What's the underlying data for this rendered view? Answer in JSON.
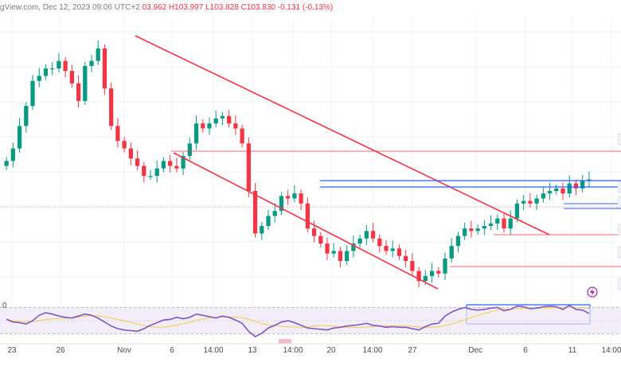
{
  "header": {
    "source": "gView.com, Dec 12, 2023 09:06 UTC+2",
    "open": "03.962",
    "high": "H103.997",
    "low": "L103.828",
    "close": "C103.830",
    "change": "-0.131 (-0.13%)"
  },
  "rsi_label": "0",
  "colors": {
    "up": "#089981",
    "down": "#f23645",
    "channel": "#f23645",
    "box": "#2962ff",
    "rsi_line": "#7e57c2",
    "rsi_ma": "#f9c74f",
    "rsi_band": "#ede7f6"
  },
  "chart_data": {
    "type": "candlestick",
    "title": "",
    "x_ticks": [
      "23",
      "26",
      "Nov",
      "6",
      "14:00",
      "13",
      "14:00",
      "20",
      "14:00",
      "27",
      "Dec",
      "6",
      "11",
      "14:00"
    ],
    "price_series": [
      {
        "name": "close",
        "values": [
          104.2,
          104.45,
          104.9,
          105.3,
          105.8,
          105.9,
          106.05,
          106.05,
          106.2,
          106.0,
          105.75,
          105.4,
          106.1,
          106.2,
          106.45,
          105.65,
          104.9,
          104.6,
          104.45,
          104.25,
          104.1,
          103.9,
          103.9,
          104.05,
          104.2,
          104.1,
          104.05,
          104.3,
          104.55,
          104.95,
          104.85,
          104.95,
          105.05,
          105.1,
          104.95,
          104.85,
          104.55,
          103.6,
          102.75,
          102.9,
          103.1,
          103.2,
          103.5,
          103.45,
          103.55,
          103.35,
          102.85,
          102.7,
          102.55,
          102.35,
          102.4,
          102.2,
          102.4,
          102.55,
          102.65,
          102.8,
          102.65,
          102.5,
          102.4,
          102.45,
          102.3,
          102.2,
          102.0,
          101.8,
          101.9,
          102.0,
          101.95,
          102.25,
          102.5,
          102.7,
          102.85,
          102.8,
          102.85,
          102.9,
          102.95,
          103.05,
          102.85,
          103.05,
          103.35,
          103.4,
          103.35,
          103.45,
          103.55,
          103.6,
          103.65,
          103.55,
          103.75,
          103.65,
          103.8,
          103.83
        ]
      }
    ],
    "ylim": [
      101.5,
      107.1
    ],
    "rsi": {
      "values": [
        52,
        48,
        47,
        45,
        50,
        58,
        62,
        60,
        57,
        55,
        54,
        57,
        60,
        58,
        54,
        48,
        42,
        38,
        36,
        35,
        34,
        38,
        43,
        47,
        51,
        52,
        55,
        53,
        55,
        60,
        58,
        56,
        54,
        57,
        55,
        51,
        46,
        34,
        26,
        31,
        39,
        43,
        48,
        50,
        47,
        43,
        39,
        38,
        37,
        36,
        39,
        40,
        42,
        43,
        44,
        46,
        43,
        42,
        40,
        41,
        40,
        40,
        38,
        36,
        41,
        45,
        46,
        57,
        63,
        67,
        70,
        67,
        66,
        67,
        69,
        70,
        65,
        67,
        72,
        71,
        68,
        69,
        71,
        72,
        71,
        67,
        73,
        67,
        66,
        61
      ],
      "ylim": [
        20,
        80
      ],
      "levels": [
        30,
        70
      ]
    }
  }
}
